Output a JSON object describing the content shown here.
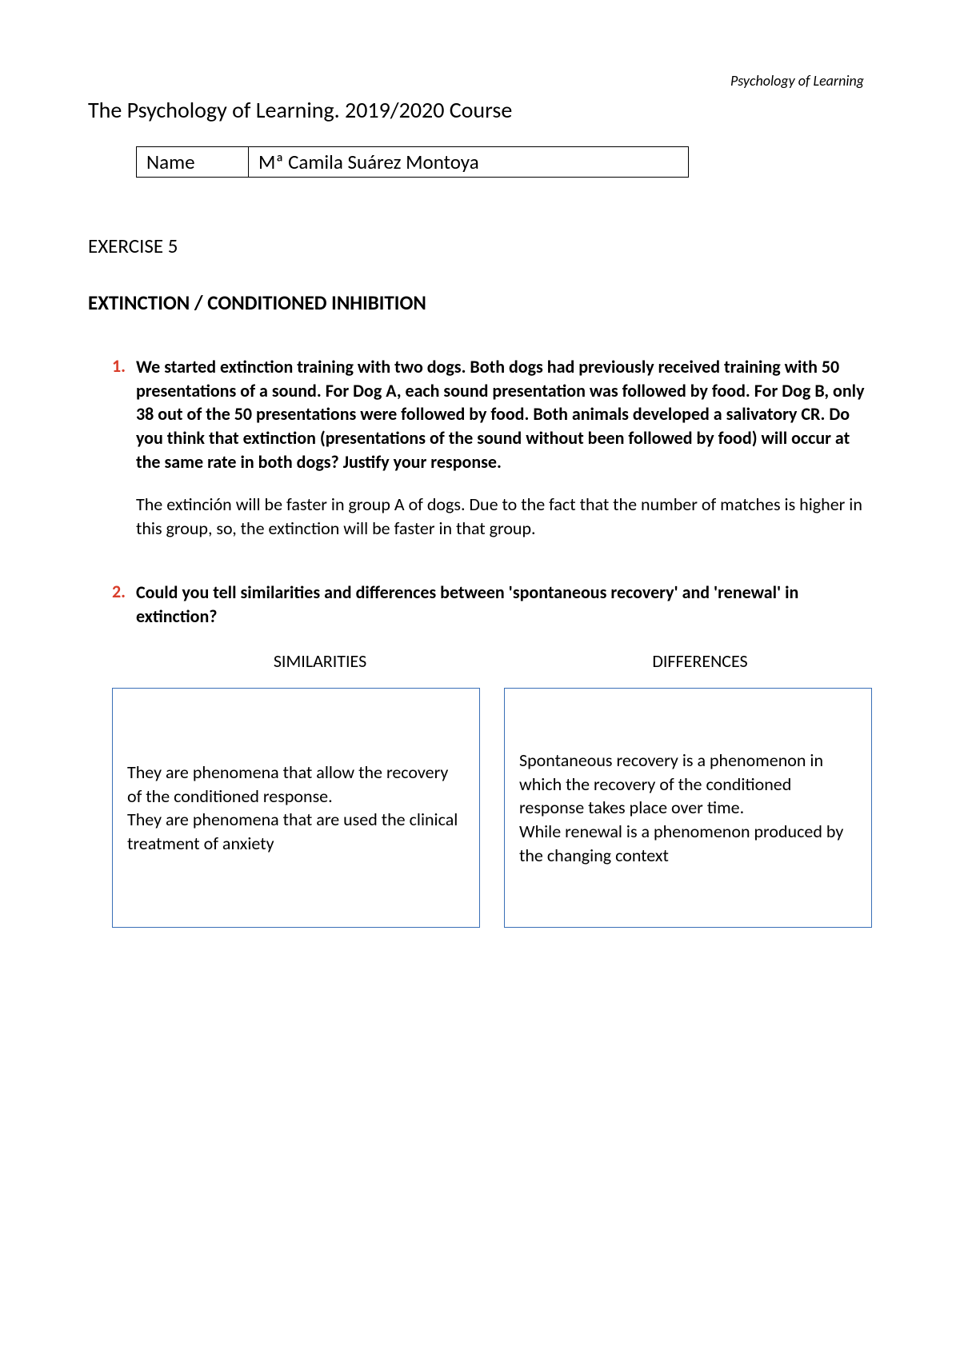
{
  "header_small": "Psychology of Learning",
  "title": "The Psychology of Learning. 2019/2020 Course",
  "name_label": "Name",
  "name_value": "Mª Camila Suárez Montoya",
  "exercise": "EXERCISE 5",
  "topic": "EXTINCTION / CONDITIONED INHIBITION",
  "q1": {
    "num": "1.",
    "text": "We started extinction training with two dogs. Both dogs had previously received training with 50 presentations of a sound. For Dog A, each sound presentation was followed by food. For Dog B, only 38 out of the 50 presentations were followed by food. Both animals developed a salivatory CR. Do you think that extinction (presentations of the sound without been followed by food) will occur at the same rate in both dogs? Justify your response.",
    "answer": "The extinción will be faster in group A of dogs. Due to the fact that the number of matches is higher in this group, so, the extinction will be faster in that group."
  },
  "q2": {
    "num": "2.",
    "text": "Could you tell similarities and differences between 'spontaneous recovery' and 'renewal' in extinction?",
    "similarities_label": "SIMILARITIES",
    "differences_label": "DIFFERENCES",
    "similarities_box": "They are phenomena that allow the recovery of the conditioned response.\nThey are phenomena that are used the clinical treatment of anxiety",
    "differences_box": "Spontaneous recovery is a phenomenon in which the recovery of the conditioned response takes place over time.\nWhile renewal is a phenomenon produced by the changing context"
  },
  "colors": {
    "accent_red": "#d93d2a",
    "box_border": "#3a6fb7",
    "text": "#000000",
    "background": "#ffffff"
  },
  "typography": {
    "body_fontsize": 22,
    "title_fontsize": 28,
    "header_small_fontsize": 18
  }
}
